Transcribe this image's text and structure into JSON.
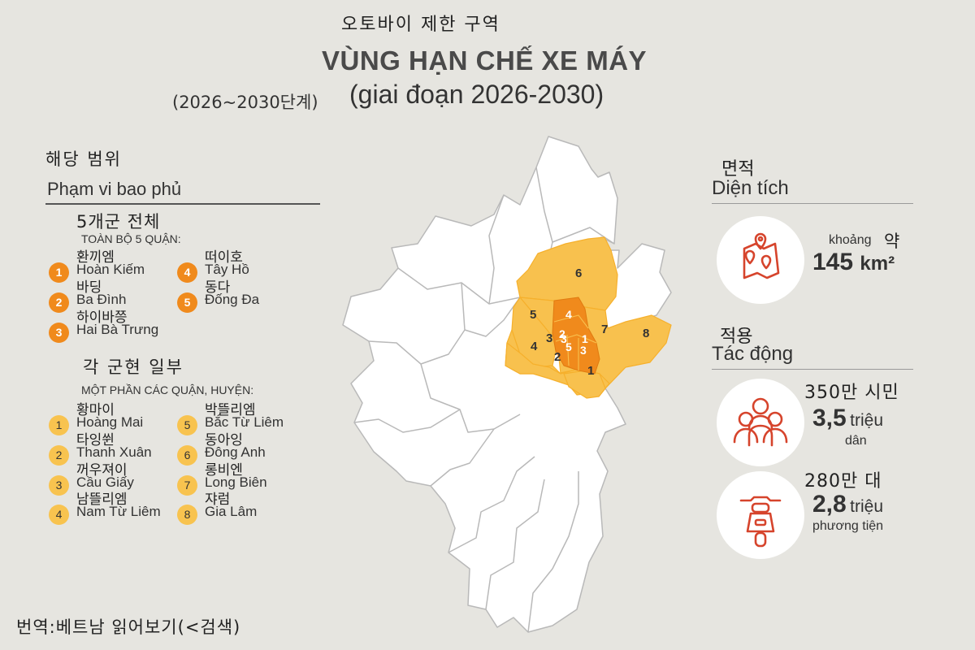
{
  "header": {
    "title_kr": "오토바이 제한 구역",
    "title_vn": "VÙNG HẠN CHẾ XE MÁY",
    "subtitle_kr": "(2026~2030단계)",
    "subtitle_vn": "(giai đoạn 2026-2030)"
  },
  "coverage": {
    "heading_kr": "해당 범위",
    "heading_vn": "Phạm vi bao phủ",
    "full": {
      "heading_kr": "5개군 전체",
      "heading_vn": "TOÀN BỘ 5 QUẬN:",
      "items": [
        {
          "num": "1",
          "kr": "환끼엠",
          "vn": "Hoàn Kiếm"
        },
        {
          "num": "2",
          "kr": "바딩",
          "vn": "Ba Đình"
        },
        {
          "num": "3",
          "kr": "하이바쯩",
          "vn": "Hai Bà Trưng"
        },
        {
          "num": "4",
          "kr": "떠이호",
          "vn": "Tây Hồ"
        },
        {
          "num": "5",
          "kr": "동다",
          "vn": "Đống Đa"
        }
      ]
    },
    "partial": {
      "heading_kr": "각 군현 일부",
      "heading_vn": "MỘT PHẦN CÁC QUẬN, HUYỆN:",
      "items": [
        {
          "num": "1",
          "kr": "황마이",
          "vn": "Hoàng Mai"
        },
        {
          "num": "2",
          "kr": "타잉쒼",
          "vn": "Thanh Xuân"
        },
        {
          "num": "3",
          "kr": "꺼우져이",
          "vn": "Cầu Giấy"
        },
        {
          "num": "4",
          "kr": "남뜰리엠",
          "vn": "Nam Từ Liêm"
        },
        {
          "num": "5",
          "kr": "박뜰리엠",
          "vn": "Bắc Từ Liêm"
        },
        {
          "num": "6",
          "kr": "동아잉",
          "vn": "Đông Anh"
        },
        {
          "num": "7",
          "kr": "롱비엔",
          "vn": "Long Biên"
        },
        {
          "num": "8",
          "kr": "쟈럼",
          "vn": "Gia Lâm"
        }
      ]
    }
  },
  "area": {
    "heading_kr": "면적",
    "heading_vn": "Diện tích",
    "prefix_vn": "khoảng",
    "prefix_kr": "약",
    "value": "145",
    "unit": "km²",
    "icon": "map-pin-icon"
  },
  "impact": {
    "heading_kr": "적용",
    "heading_vn": "Tác động",
    "people": {
      "kr": "350만 시민",
      "value": "3,5",
      "unit": "triệu",
      "label": "dân",
      "icon": "people-icon"
    },
    "vehicles": {
      "kr": "280만 대",
      "value": "2,8",
      "unit": "triệu",
      "label": "phương tiện",
      "icon": "scooter-icon"
    }
  },
  "map": {
    "inner_labels": [
      "4",
      "2",
      "1",
      "5",
      "3",
      "3"
    ],
    "outer_labels": [
      "6",
      "5",
      "7",
      "8",
      "4",
      "3",
      "2",
      "1"
    ],
    "colors": {
      "base": "#ffffff",
      "outer": "#f8c14e",
      "inner": "#f08a1c",
      "border": "#b7b7b7"
    }
  },
  "footer": {
    "text": "번역:베트남 읽어보기(<검색)"
  },
  "colors": {
    "accent": "#d6442c",
    "orange_dark": "#f08a1c",
    "orange_light": "#f8c34f"
  }
}
